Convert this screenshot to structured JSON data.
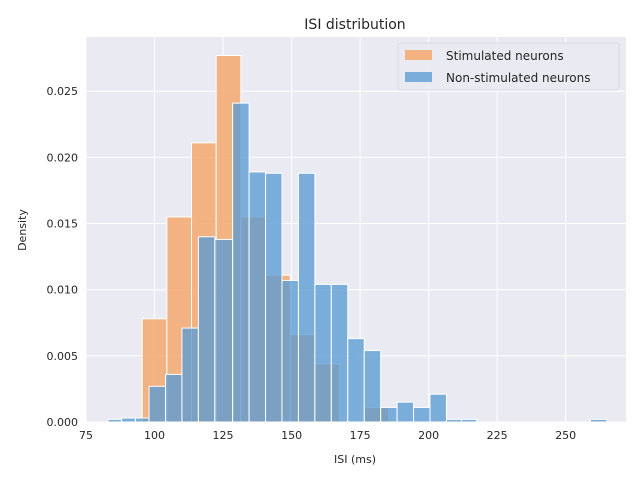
{
  "chart_data": {
    "type": "histogram",
    "title": "ISI distribution",
    "xlabel": "ISI (ms)",
    "ylabel": "Density",
    "xlim": [
      75,
      272
    ],
    "ylim": [
      0,
      0.0291
    ],
    "xticks": [
      75,
      100,
      125,
      150,
      175,
      200,
      225,
      250
    ],
    "yticks": [
      0.0,
      0.005,
      0.01,
      0.015,
      0.02,
      0.025
    ],
    "ytick_labels": [
      "0.000",
      "0.005",
      "0.010",
      "0.015",
      "0.020",
      "0.025"
    ],
    "grid": true,
    "legend_position": "top-right",
    "series": [
      {
        "name": "Stimulated neurons",
        "color": "#f4a261",
        "bins": [
          {
            "x0": 95.5,
            "x1": 104.5,
            "density": 0.0078
          },
          {
            "x0": 104.5,
            "x1": 113.5,
            "density": 0.0155
          },
          {
            "x0": 113.5,
            "x1": 122.5,
            "density": 0.0211
          },
          {
            "x0": 122.5,
            "x1": 131.5,
            "density": 0.0277
          },
          {
            "x0": 131.5,
            "x1": 140.5,
            "density": 0.0155
          },
          {
            "x0": 140.5,
            "x1": 149.5,
            "density": 0.0111
          },
          {
            "x0": 149.5,
            "x1": 158.5,
            "density": 0.0066
          },
          {
            "x0": 158.5,
            "x1": 167.5,
            "density": 0.0044
          },
          {
            "x0": 167.5,
            "x1": 176.5,
            "density": 0.0
          },
          {
            "x0": 176.5,
            "x1": 185.5,
            "density": 0.0011
          }
        ]
      },
      {
        "name": "Non-stimulated neurons",
        "color": "#5a9bd4",
        "bins": [
          {
            "x0": 83.0,
            "x1": 88.0,
            "density": 0.0002
          },
          {
            "x0": 88.0,
            "x1": 93.0,
            "density": 0.0003
          },
          {
            "x0": 93.0,
            "x1": 98.0,
            "density": 0.0003
          },
          {
            "x0": 98.0,
            "x1": 104.0,
            "density": 0.0027
          },
          {
            "x0": 104.0,
            "x1": 110.0,
            "density": 0.0036
          },
          {
            "x0": 110.0,
            "x1": 116.0,
            "density": 0.0071
          },
          {
            "x0": 116.0,
            "x1": 122.0,
            "density": 0.014
          },
          {
            "x0": 122.0,
            "x1": 128.5,
            "density": 0.0138
          },
          {
            "x0": 128.5,
            "x1": 134.5,
            "density": 0.0241
          },
          {
            "x0": 134.5,
            "x1": 140.5,
            "density": 0.0189
          },
          {
            "x0": 140.5,
            "x1": 146.5,
            "density": 0.0188
          },
          {
            "x0": 146.5,
            "x1": 152.5,
            "density": 0.0107
          },
          {
            "x0": 152.5,
            "x1": 158.5,
            "density": 0.0188
          },
          {
            "x0": 158.5,
            "x1": 164.5,
            "density": 0.0104
          },
          {
            "x0": 164.5,
            "x1": 170.5,
            "density": 0.0104
          },
          {
            "x0": 170.5,
            "x1": 176.5,
            "density": 0.0063
          },
          {
            "x0": 176.5,
            "x1": 182.5,
            "density": 0.0054
          },
          {
            "x0": 182.5,
            "x1": 188.5,
            "density": 0.0011
          },
          {
            "x0": 188.5,
            "x1": 194.5,
            "density": 0.0015
          },
          {
            "x0": 194.5,
            "x1": 200.5,
            "density": 0.0011
          },
          {
            "x0": 200.5,
            "x1": 206.5,
            "density": 0.0021
          },
          {
            "x0": 206.5,
            "x1": 212.0,
            "density": 0.0002
          },
          {
            "x0": 212.0,
            "x1": 217.5,
            "density": 0.0002
          },
          {
            "x0": 259.0,
            "x1": 265.0,
            "density": 0.0002
          }
        ]
      }
    ],
    "overlap_color": "#8a939c"
  }
}
